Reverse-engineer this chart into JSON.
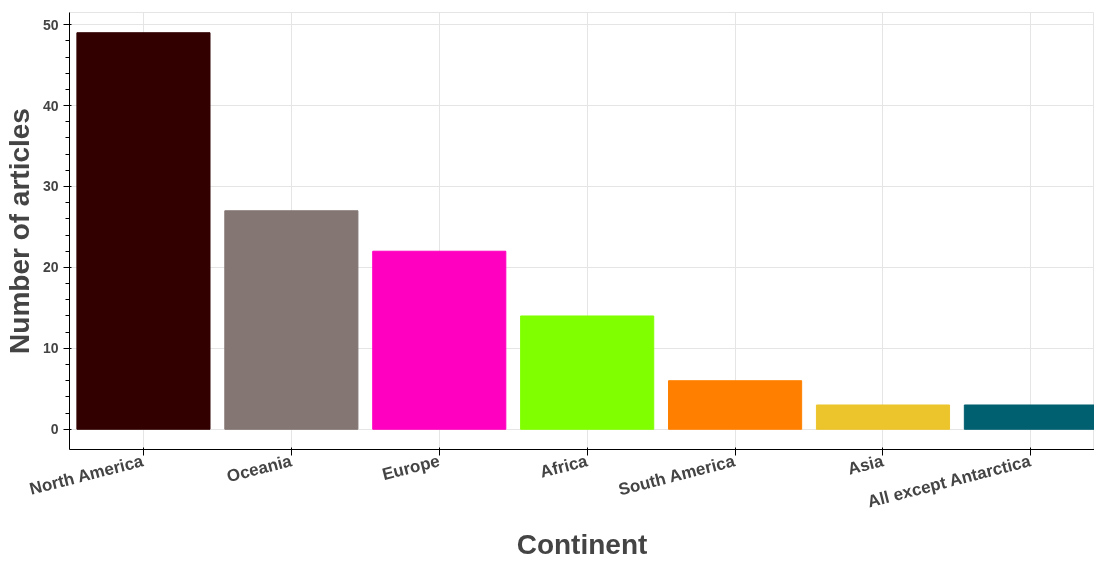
{
  "chart_data": {
    "type": "bar",
    "xlabel": "Continent",
    "ylabel": "Number of articles",
    "categories": [
      "North America",
      "Oceania",
      "Europe",
      "Africa",
      "South America",
      "Asia",
      "All except Antarctica"
    ],
    "values": [
      49,
      27,
      22,
      14,
      6,
      3,
      3
    ],
    "colors": [
      "#330000",
      "#837673",
      "#ff00c0",
      "#80ff00",
      "#ff8000",
      "#ecc42c",
      "#006070"
    ],
    "ylim": [
      -2.5,
      51.5
    ],
    "yticks": [
      0,
      10,
      20,
      30,
      40,
      50
    ],
    "grid": true
  }
}
